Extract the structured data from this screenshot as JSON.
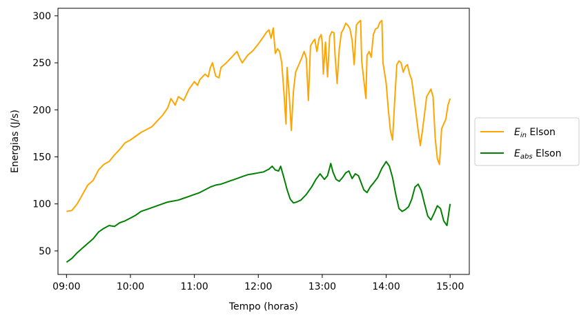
{
  "chart_data": {
    "type": "line",
    "title": "",
    "xlabel": "Tempo (horas)",
    "ylabel": "Energias (J/s)",
    "xlim": [
      "08:52",
      "15:18"
    ],
    "ylim": [
      25,
      308
    ],
    "x_ticks": [
      "09:00",
      "10:00",
      "11:00",
      "12:00",
      "13:00",
      "14:00",
      "15:00"
    ],
    "y_ticks": [
      50,
      100,
      150,
      200,
      250,
      300
    ],
    "grid": false,
    "legend_position": "center-right-outside",
    "series": [
      {
        "name": "Elson",
        "legend_main": "E",
        "legend_sub": "in",
        "legend_suffix": " Elson",
        "color": "#ffa500",
        "points": [
          [
            "09:00",
            92
          ],
          [
            "09:05",
            93
          ],
          [
            "09:10",
            100
          ],
          [
            "09:15",
            110
          ],
          [
            "09:20",
            120
          ],
          [
            "09:25",
            125
          ],
          [
            "09:30",
            136
          ],
          [
            "09:35",
            142
          ],
          [
            "09:40",
            145
          ],
          [
            "09:45",
            152
          ],
          [
            "09:50",
            158
          ],
          [
            "09:55",
            165
          ],
          [
            "10:00",
            168
          ],
          [
            "10:05",
            172
          ],
          [
            "10:10",
            176
          ],
          [
            "10:15",
            179
          ],
          [
            "10:20",
            182
          ],
          [
            "10:25",
            188
          ],
          [
            "10:30",
            194
          ],
          [
            "10:35",
            202
          ],
          [
            "10:38",
            212
          ],
          [
            "10:42",
            205
          ],
          [
            "10:45",
            214
          ],
          [
            "10:50",
            210
          ],
          [
            "10:55",
            222
          ],
          [
            "11:00",
            230
          ],
          [
            "11:03",
            226
          ],
          [
            "11:05",
            232
          ],
          [
            "11:10",
            238
          ],
          [
            "11:13",
            235
          ],
          [
            "11:15",
            245
          ],
          [
            "11:17",
            250
          ],
          [
            "11:20",
            236
          ],
          [
            "11:23",
            234
          ],
          [
            "11:25",
            245
          ],
          [
            "11:30",
            250
          ],
          [
            "11:35",
            256
          ],
          [
            "11:40",
            262
          ],
          [
            "11:43",
            254
          ],
          [
            "11:45",
            250
          ],
          [
            "11:50",
            258
          ],
          [
            "11:55",
            263
          ],
          [
            "12:00",
            270
          ],
          [
            "12:05",
            278
          ],
          [
            "12:08",
            283
          ],
          [
            "12:10",
            285
          ],
          [
            "12:12",
            276
          ],
          [
            "12:14",
            287
          ],
          [
            "12:16",
            260
          ],
          [
            "12:18",
            265
          ],
          [
            "12:20",
            262
          ],
          [
            "12:22",
            250
          ],
          [
            "12:24",
            220
          ],
          [
            "12:26",
            185
          ],
          [
            "12:27",
            245
          ],
          [
            "12:29",
            215
          ],
          [
            "12:31",
            178
          ],
          [
            "12:33",
            220
          ],
          [
            "12:35",
            240
          ],
          [
            "12:38",
            248
          ],
          [
            "12:41",
            256
          ],
          [
            "12:43",
            262
          ],
          [
            "12:45",
            255
          ],
          [
            "12:47",
            210
          ],
          [
            "12:49",
            268
          ],
          [
            "12:51",
            272
          ],
          [
            "12:53",
            275
          ],
          [
            "12:55",
            262
          ],
          [
            "12:57",
            276
          ],
          [
            "12:59",
            280
          ],
          [
            "13:00",
            272
          ],
          [
            "13:01",
            238
          ],
          [
            "13:03",
            272
          ],
          [
            "13:05",
            235
          ],
          [
            "13:07",
            278
          ],
          [
            "13:09",
            283
          ],
          [
            "13:11",
            282
          ],
          [
            "13:12",
            258
          ],
          [
            "13:14",
            228
          ],
          [
            "13:16",
            265
          ],
          [
            "13:18",
            282
          ],
          [
            "13:20",
            286
          ],
          [
            "13:22",
            292
          ],
          [
            "13:24",
            290
          ],
          [
            "13:26",
            286
          ],
          [
            "13:28",
            274
          ],
          [
            "13:30",
            248
          ],
          [
            "13:32",
            290
          ],
          [
            "13:34",
            293
          ],
          [
            "13:36",
            295
          ],
          [
            "13:37",
            252
          ],
          [
            "13:39",
            232
          ],
          [
            "13:41",
            212
          ],
          [
            "13:42",
            258
          ],
          [
            "13:44",
            262
          ],
          [
            "13:46",
            256
          ],
          [
            "13:48",
            280
          ],
          [
            "13:50",
            286
          ],
          [
            "13:52",
            287
          ],
          [
            "13:54",
            293
          ],
          [
            "13:56",
            295
          ],
          [
            "13:57",
            250
          ],
          [
            "13:59",
            236
          ],
          [
            "14:00",
            228
          ],
          [
            "14:02",
            200
          ],
          [
            "14:04",
            178
          ],
          [
            "14:06",
            168
          ],
          [
            "14:08",
            210
          ],
          [
            "14:10",
            248
          ],
          [
            "14:12",
            252
          ],
          [
            "14:14",
            250
          ],
          [
            "14:16",
            240
          ],
          [
            "14:18",
            246
          ],
          [
            "14:20",
            248
          ],
          [
            "14:22",
            238
          ],
          [
            "14:24",
            232
          ],
          [
            "14:26",
            214
          ],
          [
            "14:28",
            196
          ],
          [
            "14:30",
            178
          ],
          [
            "14:32",
            162
          ],
          [
            "14:34",
            178
          ],
          [
            "14:36",
            196
          ],
          [
            "14:38",
            214
          ],
          [
            "14:40",
            218
          ],
          [
            "14:42",
            222
          ],
          [
            "14:44",
            214
          ],
          [
            "14:46",
            170
          ],
          [
            "14:48",
            148
          ],
          [
            "14:50",
            142
          ],
          [
            "14:52",
            180
          ],
          [
            "14:54",
            185
          ],
          [
            "14:56",
            190
          ],
          [
            "14:58",
            205
          ],
          [
            "15:00",
            212
          ]
        ]
      },
      {
        "name": "Elson",
        "legend_main": "E",
        "legend_sub": "abs",
        "legend_suffix": " Elson",
        "color": "#008000",
        "points": [
          [
            "09:00",
            38
          ],
          [
            "09:05",
            42
          ],
          [
            "09:10",
            48
          ],
          [
            "09:15",
            53
          ],
          [
            "09:20",
            58
          ],
          [
            "09:25",
            63
          ],
          [
            "09:30",
            70
          ],
          [
            "09:35",
            74
          ],
          [
            "09:40",
            77
          ],
          [
            "09:45",
            76
          ],
          [
            "09:50",
            80
          ],
          [
            "09:55",
            82
          ],
          [
            "10:00",
            85
          ],
          [
            "10:05",
            88
          ],
          [
            "10:10",
            92
          ],
          [
            "10:15",
            94
          ],
          [
            "10:20",
            96
          ],
          [
            "10:25",
            98
          ],
          [
            "10:30",
            100
          ],
          [
            "10:35",
            102
          ],
          [
            "10:40",
            103
          ],
          [
            "10:45",
            104
          ],
          [
            "10:50",
            106
          ],
          [
            "10:55",
            108
          ],
          [
            "11:00",
            110
          ],
          [
            "11:05",
            112
          ],
          [
            "11:10",
            115
          ],
          [
            "11:15",
            118
          ],
          [
            "11:20",
            120
          ],
          [
            "11:25",
            121
          ],
          [
            "11:30",
            123
          ],
          [
            "11:35",
            125
          ],
          [
            "11:40",
            127
          ],
          [
            "11:45",
            129
          ],
          [
            "11:50",
            131
          ],
          [
            "11:55",
            132
          ],
          [
            "12:00",
            133
          ],
          [
            "12:05",
            134
          ],
          [
            "12:10",
            137
          ],
          [
            "12:13",
            140
          ],
          [
            "12:16",
            136
          ],
          [
            "12:19",
            135
          ],
          [
            "12:21",
            140
          ],
          [
            "12:24",
            128
          ],
          [
            "12:27",
            115
          ],
          [
            "12:30",
            105
          ],
          [
            "12:33",
            101
          ],
          [
            "12:36",
            102
          ],
          [
            "12:40",
            104
          ],
          [
            "12:45",
            110
          ],
          [
            "12:50",
            118
          ],
          [
            "12:54",
            126
          ],
          [
            "12:58",
            132
          ],
          [
            "13:02",
            126
          ],
          [
            "13:05",
            130
          ],
          [
            "13:08",
            143
          ],
          [
            "13:10",
            134
          ],
          [
            "13:13",
            126
          ],
          [
            "13:16",
            124
          ],
          [
            "13:19",
            128
          ],
          [
            "13:22",
            133
          ],
          [
            "13:25",
            135
          ],
          [
            "13:28",
            127
          ],
          [
            "13:31",
            132
          ],
          [
            "13:34",
            130
          ],
          [
            "13:36",
            124
          ],
          [
            "13:39",
            115
          ],
          [
            "13:42",
            112
          ],
          [
            "13:45",
            118
          ],
          [
            "13:48",
            122
          ],
          [
            "13:52",
            128
          ],
          [
            "13:56",
            138
          ],
          [
            "14:00",
            145
          ],
          [
            "14:03",
            140
          ],
          [
            "14:06",
            128
          ],
          [
            "14:09",
            110
          ],
          [
            "14:12",
            95
          ],
          [
            "14:15",
            92
          ],
          [
            "14:18",
            94
          ],
          [
            "14:21",
            97
          ],
          [
            "14:24",
            105
          ],
          [
            "14:27",
            118
          ],
          [
            "14:30",
            121
          ],
          [
            "14:33",
            114
          ],
          [
            "14:36",
            100
          ],
          [
            "14:39",
            87
          ],
          [
            "14:42",
            83
          ],
          [
            "14:45",
            90
          ],
          [
            "14:48",
            98
          ],
          [
            "14:51",
            95
          ],
          [
            "14:54",
            82
          ],
          [
            "14:57",
            77
          ],
          [
            "15:00",
            100
          ]
        ]
      }
    ]
  }
}
